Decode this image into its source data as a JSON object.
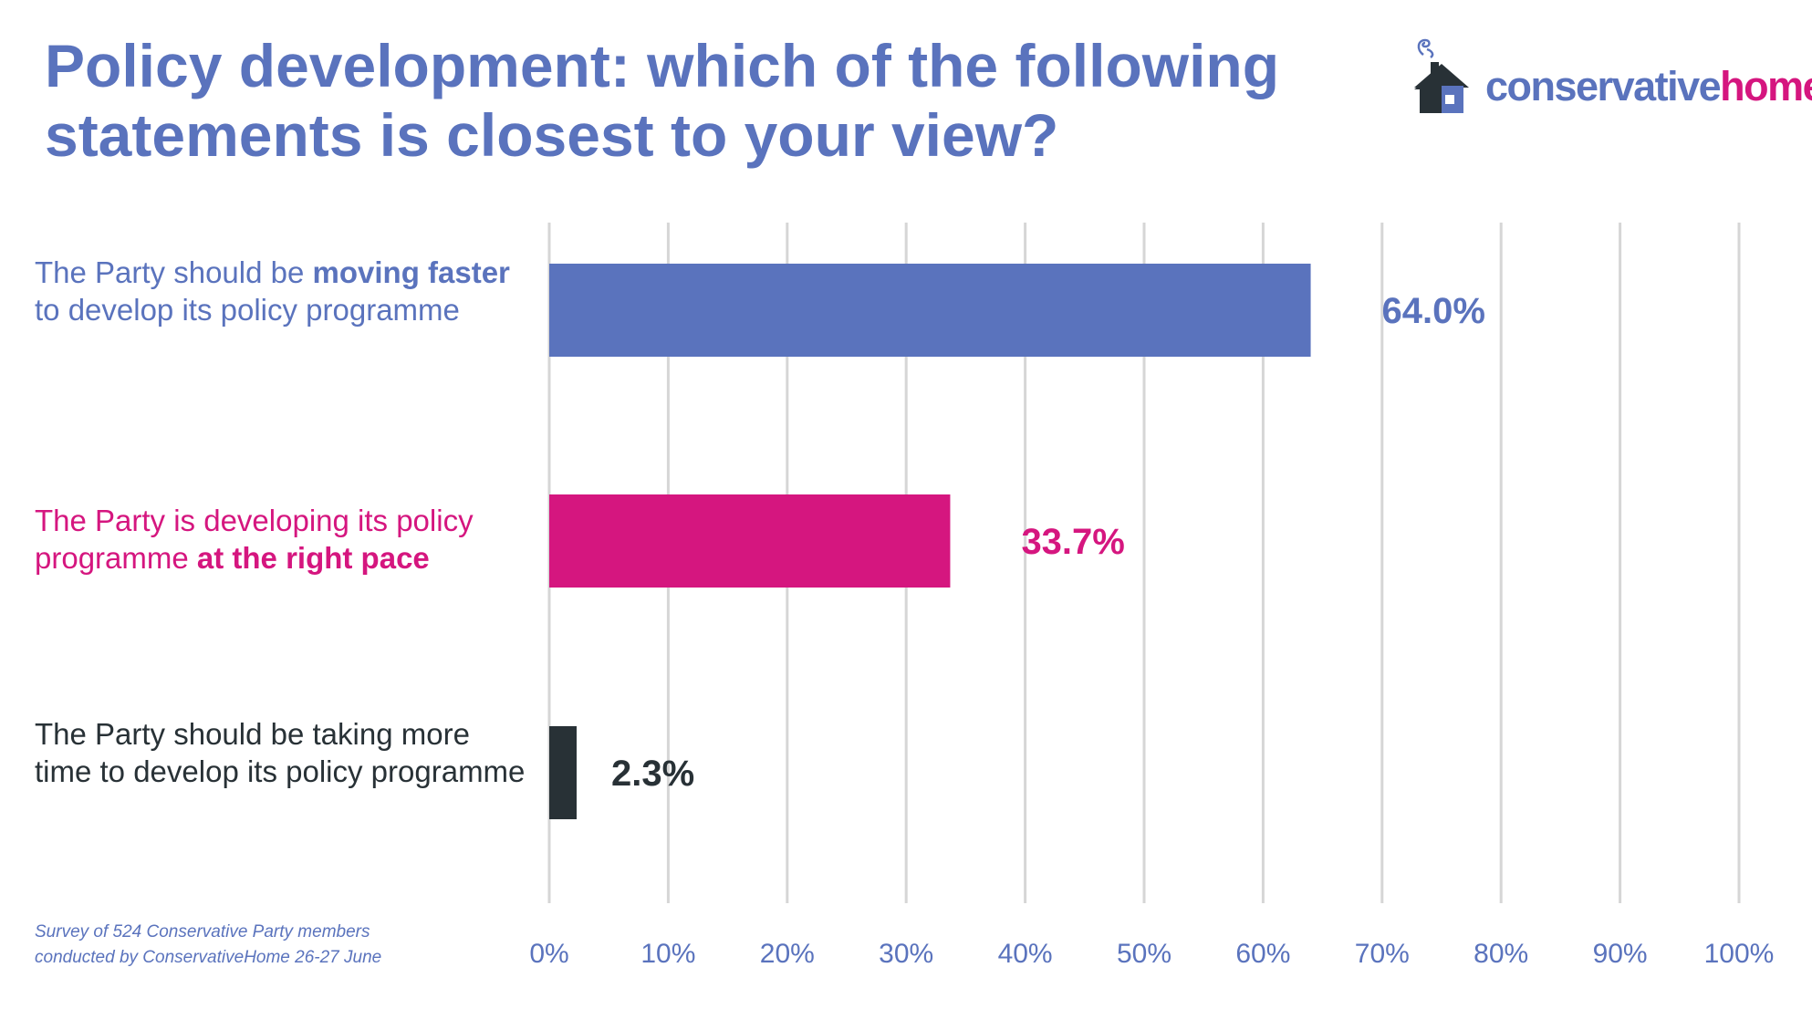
{
  "title": "Policy development: which of the following statements is closest to your view?",
  "logo": {
    "text_part1": "conservative",
    "text_part2": "home",
    "icon": "house-icon"
  },
  "colors": {
    "title": "#5a73bd",
    "brand_pink": "#d5167f",
    "dark": "#283136",
    "grid": "#d6d6d6",
    "tick": "#5a73bd"
  },
  "note": {
    "line1": "Survey of 524 Conservative Party members",
    "line2": "conducted by ConservativeHome 26-27 June"
  },
  "chart_data": {
    "type": "bar",
    "orientation": "horizontal",
    "title": "Policy development: which of the following statements is closest to your view?",
    "xlabel": "",
    "ylabel": "",
    "xlim": [
      0,
      100
    ],
    "grid": true,
    "ticks": [
      "0%",
      "10%",
      "20%",
      "30%",
      "40%",
      "50%",
      "60%",
      "70%",
      "80%",
      "90%",
      "100%"
    ],
    "categories": [
      "The Party should be moving faster to develop its policy programme",
      "The Party is developing its policy programme at the right pace",
      "The Party should be taking more time to develop its policy programme"
    ],
    "category_parts": [
      [
        {
          "t": "The Party should be ",
          "b": false
        },
        {
          "t": "moving faster",
          "b": true
        },
        {
          "t": " to develop its policy programme",
          "b": false
        }
      ],
      [
        {
          "t": "The Party is developing its policy programme ",
          "b": false
        },
        {
          "t": "at the right pace",
          "b": true
        }
      ],
      [
        {
          "t": "The Party should be taking more time to develop its policy programme",
          "b": false
        }
      ]
    ],
    "values": [
      64.0,
      33.7,
      2.3
    ],
    "value_labels": [
      "64.0%",
      "33.7%",
      "2.3%"
    ],
    "colors": [
      "#5a73bd",
      "#d5167f",
      "#283136"
    ]
  }
}
